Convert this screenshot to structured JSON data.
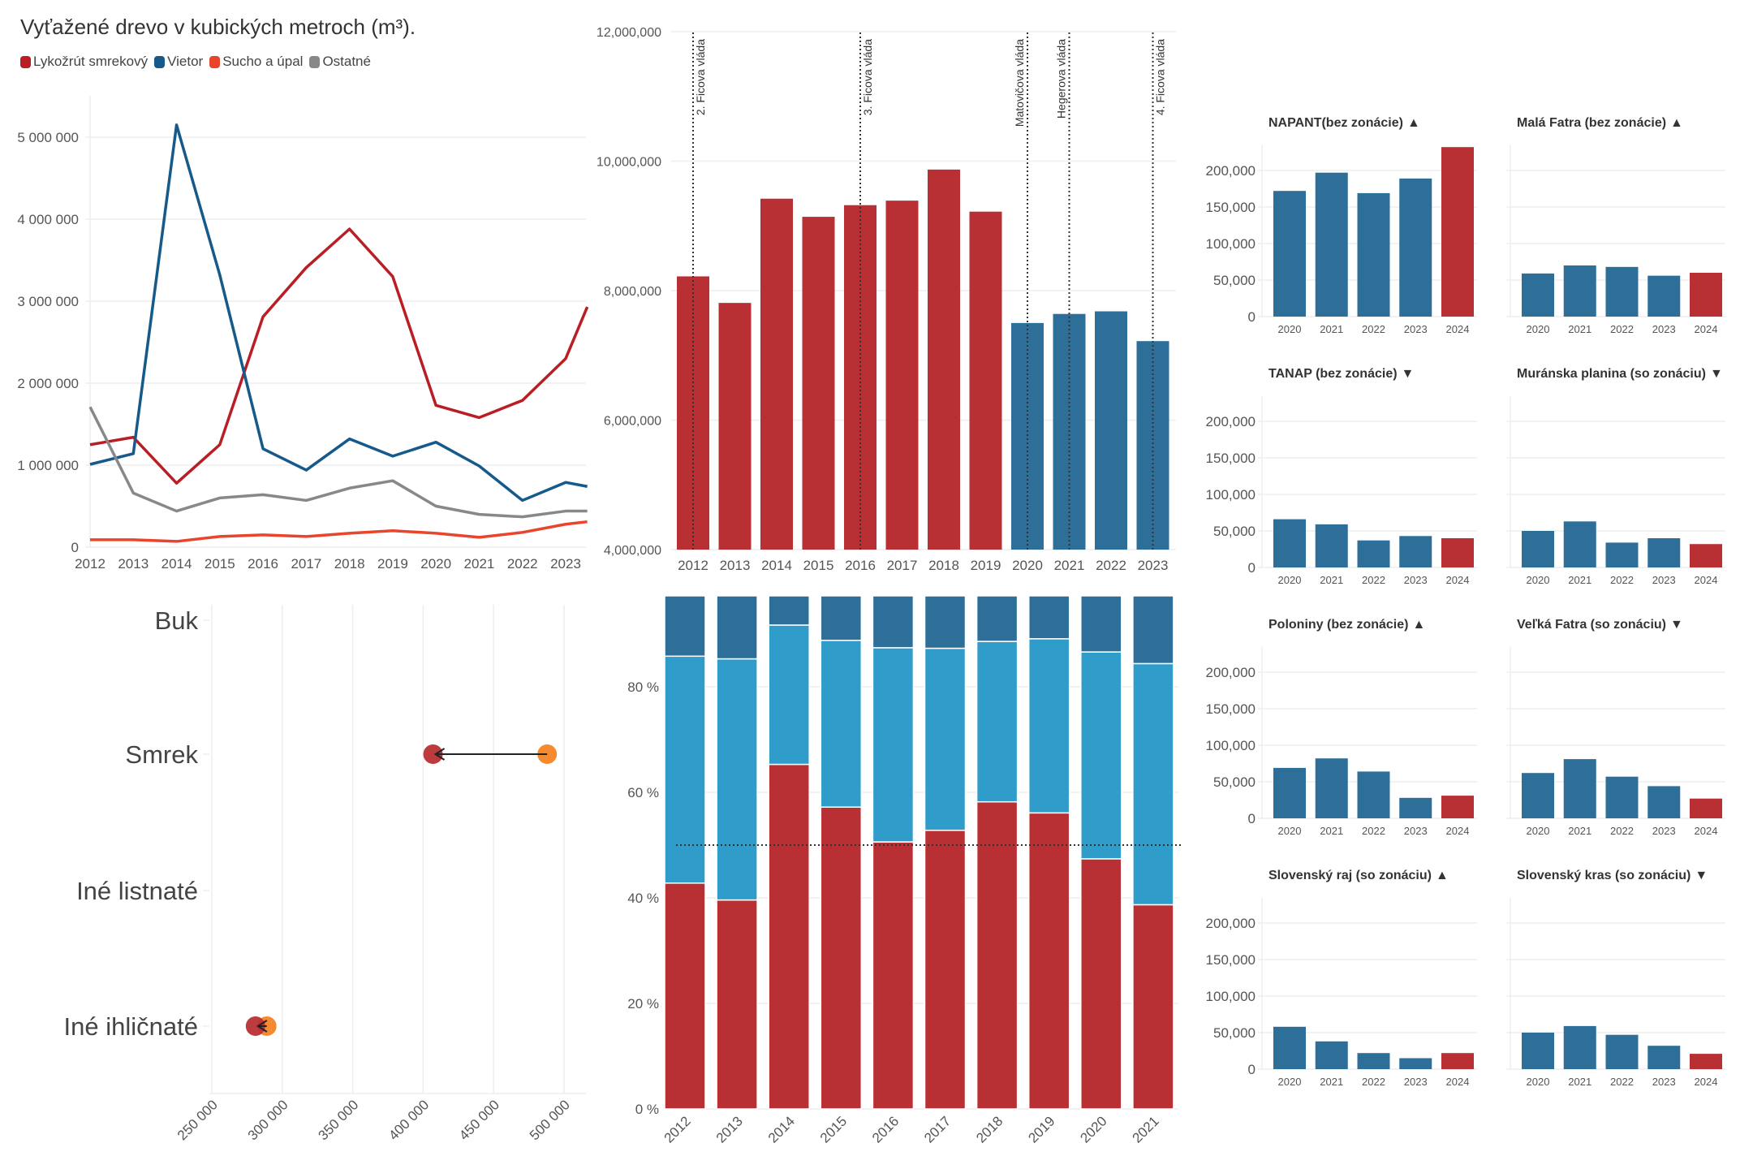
{
  "colors": {
    "red": "#b83034",
    "blue": "#2e6f99",
    "light_blue": "#2f9cc9",
    "orange": "#f58a2e",
    "grid": "#eeeeee",
    "text": "#555555"
  },
  "chart_data": [
    {
      "id": "line",
      "type": "line",
      "title": "Vyťažené drevo v kubických metroch (m³).",
      "x_ticks": [
        2012,
        2013,
        2014,
        2015,
        2016,
        2017,
        2018,
        2019,
        2020,
        2021,
        2022,
        2023
      ],
      "y_ticks": [
        0,
        1000000,
        2000000,
        3000000,
        4000000,
        5000000
      ],
      "y_tick_labels": [
        "0",
        "1 000 000",
        "2 000 000",
        "3 000 000",
        "4 000 000",
        "5 000 000"
      ],
      "xlim": [
        2012,
        2023.5
      ],
      "ylim": [
        0,
        5500000
      ],
      "legend_placement": "top-left",
      "x": [
        2012,
        2013,
        2014,
        2015,
        2016,
        2017,
        2018,
        2019,
        2020,
        2021,
        2022,
        2023,
        2023.5
      ],
      "series": [
        {
          "name": "Lykožrút smrekový",
          "color": "#b81e24",
          "values": [
            1250000,
            1340000,
            780000,
            1250000,
            2810000,
            3410000,
            3880000,
            3300000,
            1730000,
            1580000,
            1790000,
            2300000,
            2930000
          ]
        },
        {
          "name": "Vietor",
          "color": "#155a8a",
          "values": [
            1010000,
            1140000,
            5150000,
            3320000,
            1200000,
            940000,
            1320000,
            1110000,
            1280000,
            990000,
            570000,
            790000,
            740000
          ]
        },
        {
          "name": "Sucho a úpal",
          "color": "#e8452c",
          "values": [
            90000,
            90000,
            70000,
            130000,
            150000,
            130000,
            170000,
            200000,
            170000,
            120000,
            180000,
            280000,
            310000
          ]
        },
        {
          "name": "Ostatné",
          "color": "#888888",
          "values": [
            1710000,
            660000,
            440000,
            600000,
            640000,
            570000,
            720000,
            810000,
            500000,
            400000,
            370000,
            440000,
            440000
          ]
        }
      ]
    },
    {
      "id": "bars",
      "type": "bar",
      "categories": [
        "2012",
        "2013",
        "2014",
        "2015",
        "2016",
        "2017",
        "2018",
        "2019",
        "2020",
        "2021",
        "2022",
        "2023"
      ],
      "values": [
        8220000,
        7810000,
        9420000,
        9140000,
        9320000,
        9390000,
        9870000,
        9220000,
        7500000,
        7640000,
        7680000,
        7220000
      ],
      "bar_colors": [
        "red",
        "red",
        "red",
        "red",
        "red",
        "red",
        "red",
        "red",
        "blue",
        "blue",
        "blue",
        "blue"
      ],
      "ylim": [
        4000000,
        12000000
      ],
      "y_ticks": [
        4000000,
        6000000,
        8000000,
        10000000,
        12000000
      ],
      "y_tick_labels": [
        "4,000,000",
        "6,000,000",
        "8,000,000",
        "10,000,000",
        "12,000,000"
      ],
      "annotations": [
        {
          "at": "2012",
          "label": "2. Ficova vláda"
        },
        {
          "at": "2016",
          "label": "3. Ficova vláda"
        },
        {
          "at": "2020",
          "label": "Matovičova vláda"
        },
        {
          "at": "2021",
          "label": "Hegerova vláda"
        },
        {
          "at": "2023",
          "label": "4. Ficova vláda"
        }
      ]
    },
    {
      "id": "dumbbell",
      "type": "scatter",
      "categories": [
        "Buk",
        "Smrek",
        "Iné listnaté",
        "Iné ihličnaté"
      ],
      "points": [
        {
          "category": "Smrek",
          "from": 488000,
          "to": 407000
        },
        {
          "category": "Iné ihličnaté",
          "from": 289000,
          "to": 281000
        }
      ],
      "from_color": "orange",
      "to_color": "red",
      "xlim": [
        250000,
        515000
      ],
      "x_ticks": [
        250000,
        300000,
        350000,
        400000,
        450000,
        500000
      ],
      "x_tick_labels": [
        "250 000",
        "300 000",
        "350 000",
        "400 000",
        "450 000",
        "500 000"
      ]
    },
    {
      "id": "stacked",
      "type": "bar",
      "stacked": true,
      "categories": [
        "2012",
        "2013",
        "2014",
        "2015",
        "2016",
        "2017",
        "2018",
        "2019",
        "2020",
        "2021"
      ],
      "series": [
        {
          "color": "red",
          "values": [
            42.8,
            39.6,
            65.3,
            57.2,
            50.6,
            52.8,
            58.2,
            56.1,
            47.4,
            38.7
          ]
        },
        {
          "color": "light_blue",
          "values": [
            43.0,
            45.7,
            26.4,
            31.6,
            36.8,
            34.5,
            30.4,
            33.0,
            39.2,
            45.7
          ]
        },
        {
          "color": "blue",
          "values": [
            14.2,
            14.7,
            8.3,
            11.2,
            12.6,
            12.7,
            11.4,
            10.9,
            13.4,
            15.6
          ]
        }
      ],
      "ylim": [
        0,
        97
      ],
      "y_ticks": [
        0,
        20,
        40,
        60,
        80
      ],
      "y_tick_labels": [
        "0 %",
        "20 %",
        "40 %",
        "60 %",
        "80 %"
      ],
      "reference_line": 50
    },
    {
      "id": "multiples",
      "type": "bar",
      "categories": [
        "2020",
        "2021",
        "2022",
        "2023",
        "2024"
      ],
      "y_ticks": [
        0,
        50000,
        100000,
        150000,
        200000
      ],
      "y_tick_labels": [
        "0",
        "50,000",
        "100,000",
        "150,000",
        "200,000"
      ],
      "ylim": [
        0,
        235000
      ],
      "highlight_category": "2024",
      "panels": [
        {
          "title": "NAPANT(bez zonácie)",
          "trend": "▲",
          "values": [
            172000,
            197000,
            169000,
            189000,
            232000
          ]
        },
        {
          "title": "Malá Fatra (bez zonácie)",
          "trend": "▲",
          "values": [
            59000,
            70000,
            68000,
            56000,
            60000
          ]
        },
        {
          "title": "TANAP (bez zonácie)",
          "trend": "▼",
          "values": [
            66000,
            59000,
            37000,
            43000,
            40000
          ]
        },
        {
          "title": "Muránska planina (so zonáciu)",
          "trend": "▼",
          "values": [
            50000,
            63000,
            34000,
            40000,
            32000
          ]
        },
        {
          "title": "Poloniny (bez zonácie)",
          "trend": "▲",
          "values": [
            69000,
            82000,
            64000,
            28000,
            31000
          ]
        },
        {
          "title": "Veľká Fatra (so zonáciu)",
          "trend": "▼",
          "values": [
            62000,
            81000,
            57000,
            44000,
            27000
          ]
        },
        {
          "title": "Slovenský raj (so zonáciu)",
          "trend": "▲",
          "values": [
            58000,
            38000,
            22000,
            15000,
            22000
          ]
        },
        {
          "title": "Slovenský kras (so zonáciu)",
          "trend": "▼",
          "values": [
            50000,
            59000,
            47000,
            32000,
            21000
          ]
        }
      ]
    }
  ]
}
